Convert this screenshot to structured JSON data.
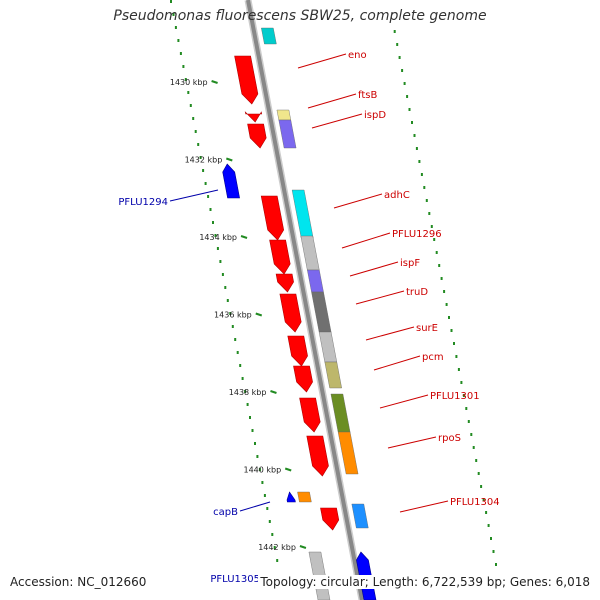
{
  "title": "Pseudomonas fluorescens SBW25, complete genome",
  "footer": {
    "accession": "Accession: NC_012660",
    "topology": "Topology: circular; Length: 6,722,539 bp; Genes: 6,018"
  },
  "axis": {
    "ticks": [
      {
        "label": "1430 kbp",
        "kbp": 1430
      },
      {
        "label": "1432 kbp",
        "kbp": 1432
      },
      {
        "label": "1434 kbp",
        "kbp": 1434
      },
      {
        "label": "1436 kbp",
        "kbp": 1436
      },
      {
        "label": "1438 kbp",
        "kbp": 1438
      },
      {
        "label": "1440 kbp",
        "kbp": 1440
      },
      {
        "label": "1442 kbp",
        "kbp": 1442
      }
    ]
  },
  "colors": {
    "backbone": "#888888",
    "forward_cds": "#ff0000",
    "forward_label": "#cc0000",
    "reverse_cds": "#0000ff",
    "reverse_label": "#0000aa",
    "gc_dots": "#228b22"
  },
  "genes": [
    {
      "label": "eno",
      "strand": "+",
      "cog_color": "#00cccc"
    },
    {
      "label": "ftsB",
      "strand": "+",
      "cog_color": "#f0e68c"
    },
    {
      "label": "ispD",
      "strand": "+",
      "cog_color": "#7b68ee"
    },
    {
      "label": "PFLU1294",
      "strand": "-",
      "cog_color": ""
    },
    {
      "label": "adhC",
      "strand": "+",
      "cog_color": "#00e5ee"
    },
    {
      "label": "PFLU1296",
      "strand": "+",
      "cog_color": "#c0c0c0"
    },
    {
      "label": "ispF",
      "strand": "+",
      "cog_color": "#7b68ee"
    },
    {
      "label": "truD",
      "strand": "+",
      "cog_color": "#707070"
    },
    {
      "label": "surE",
      "strand": "+",
      "cog_color": "#c0c0c0"
    },
    {
      "label": "pcm",
      "strand": "+",
      "cog_color": "#bdb76b"
    },
    {
      "label": "PFLU1301",
      "strand": "+",
      "cog_color": "#6b8e23"
    },
    {
      "label": "rpoS",
      "strand": "+",
      "cog_color": "#ff8c00"
    },
    {
      "label": "capB",
      "strand": "-",
      "cog_color": "#ff8c00"
    },
    {
      "label": "PFLU1304",
      "strand": "+",
      "cog_color": "#1e90ff"
    },
    {
      "label": "PFLU1305",
      "strand": "-",
      "cog_color": "#c0c0c0"
    }
  ]
}
